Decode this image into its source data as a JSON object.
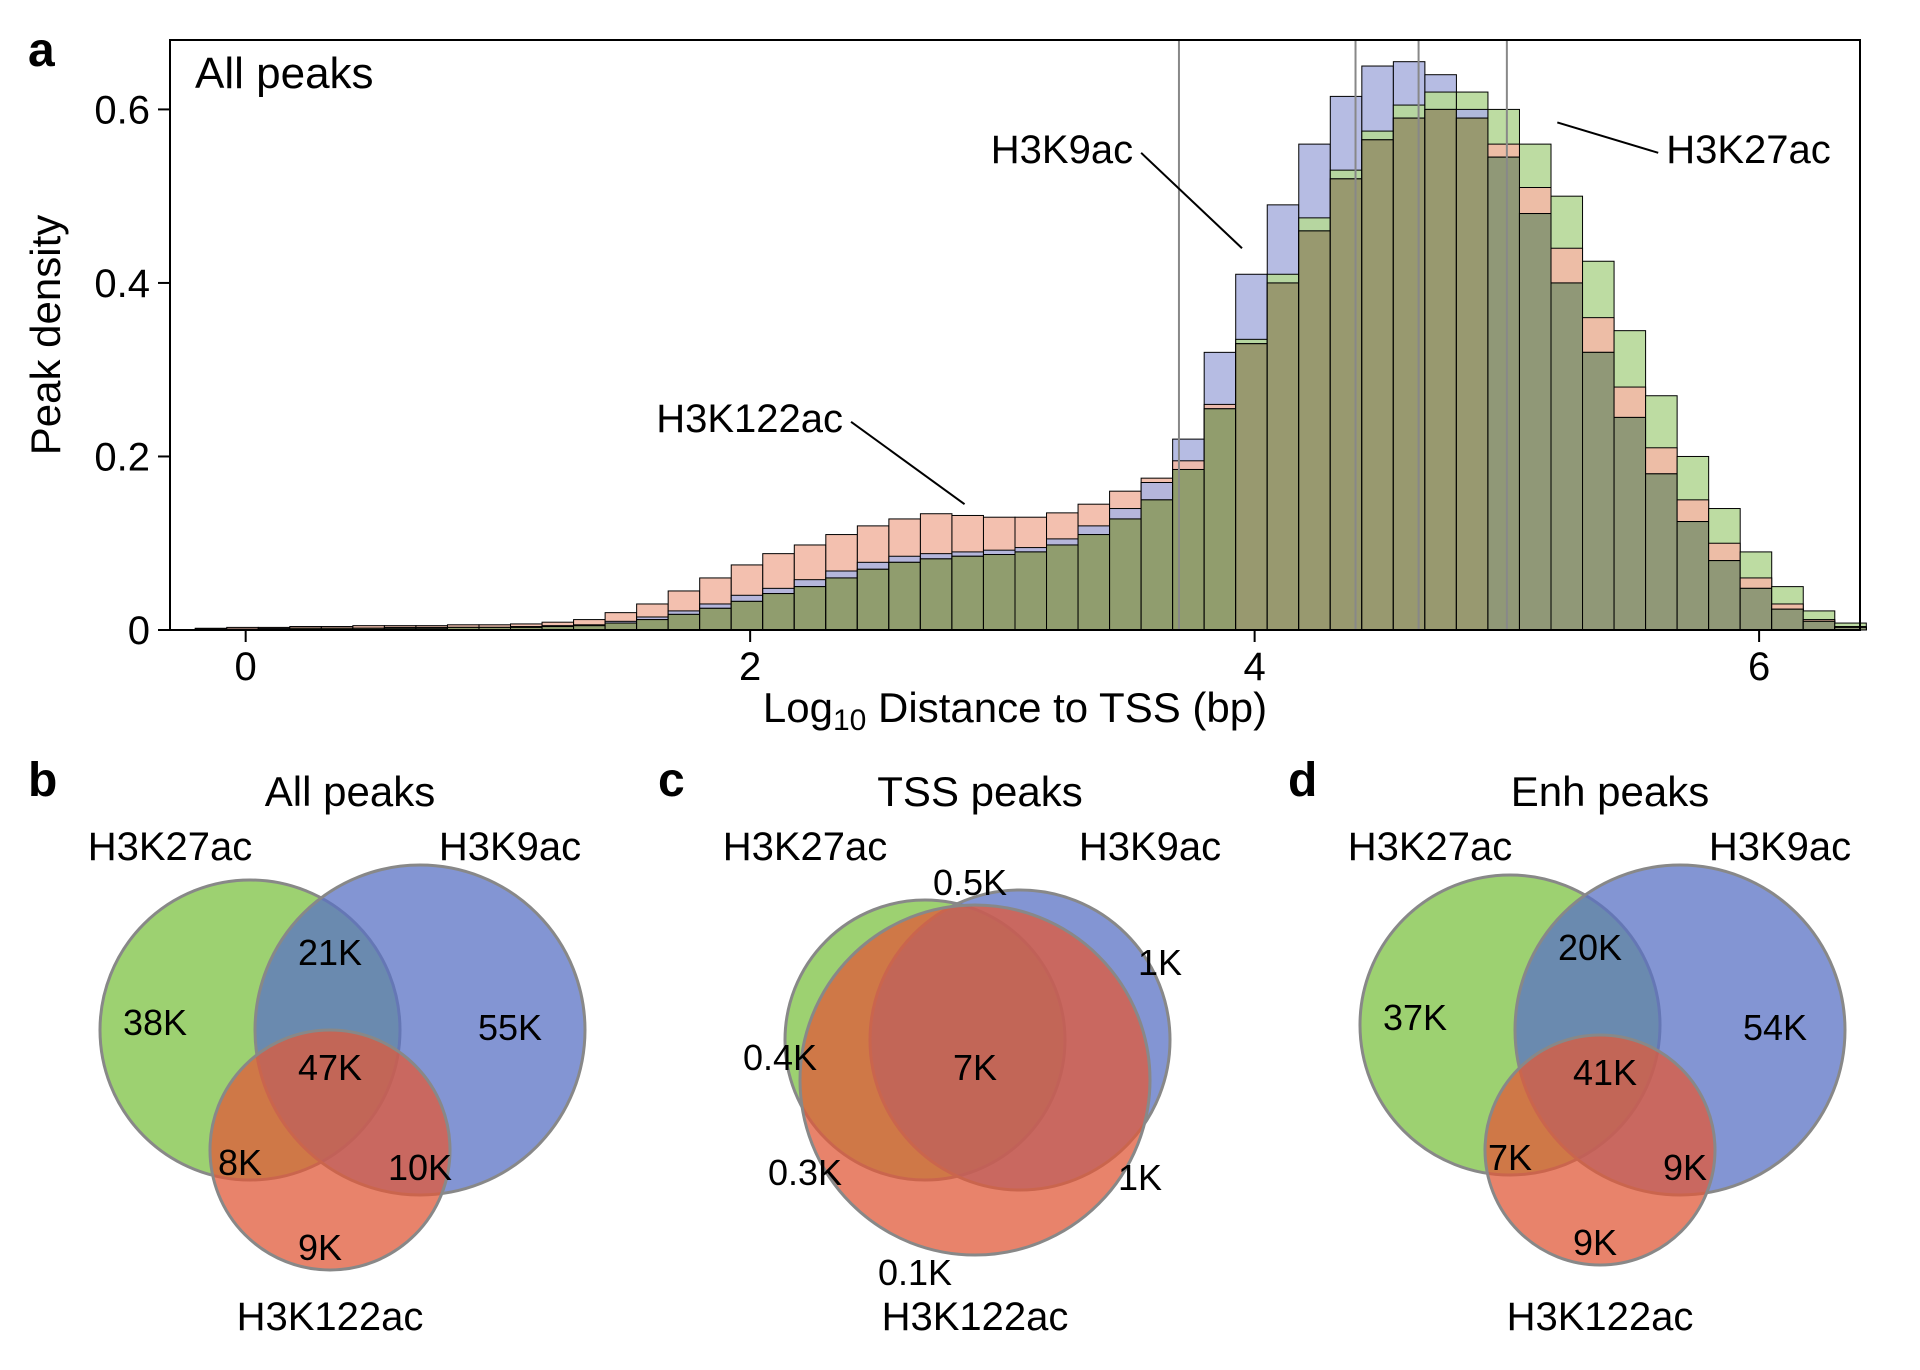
{
  "panelA": {
    "label": "a",
    "title_inset": "All peaks",
    "xlabel_prefix": "Log",
    "xlabel_sub": "10",
    "xlabel_suffix": " Distance to TSS (bp)",
    "ylabel": "Peak density",
    "xlim": [
      -0.3,
      6.4
    ],
    "ylim": [
      0,
      0.68
    ],
    "xticks": [
      0,
      2,
      4,
      6
    ],
    "yticks": [
      0,
      0.2,
      0.4,
      0.6
    ],
    "vertical_lines": [
      3.7,
      4.4,
      4.65,
      5.0
    ],
    "vertical_line_color": "#888888",
    "series_labels": {
      "H3K122ac": "H3K122ac",
      "H3K9ac": "H3K9ac",
      "H3K27ac": "H3K27ac"
    },
    "colors": {
      "H3K122ac": "#f2b9a6",
      "H3K9ac": "#aeb5e0",
      "H3K27ac": "#b6d898",
      "overlap_dark": "#8a9365",
      "bar_stroke": "#000000",
      "plot_border": "#000000",
      "background": "#ffffff",
      "tick_color": "#000000",
      "text_color": "#000000"
    },
    "bin_width": 0.125,
    "histograms": {
      "x": [
        -0.2,
        -0.075,
        0.05,
        0.175,
        0.3,
        0.425,
        0.55,
        0.675,
        0.8,
        0.925,
        1.05,
        1.175,
        1.3,
        1.425,
        1.55,
        1.675,
        1.8,
        1.925,
        2.05,
        2.175,
        2.3,
        2.425,
        2.55,
        2.675,
        2.8,
        2.925,
        3.05,
        3.175,
        3.3,
        3.425,
        3.55,
        3.675,
        3.8,
        3.925,
        4.05,
        4.175,
        4.3,
        4.425,
        4.55,
        4.675,
        4.8,
        4.925,
        5.05,
        5.175,
        5.3,
        5.425,
        5.55,
        5.675,
        5.8,
        5.925,
        6.05,
        6.175,
        6.3
      ],
      "H3K122ac": [
        0.002,
        0.003,
        0.003,
        0.004,
        0.004,
        0.005,
        0.005,
        0.005,
        0.006,
        0.006,
        0.007,
        0.009,
        0.012,
        0.02,
        0.03,
        0.045,
        0.06,
        0.075,
        0.088,
        0.098,
        0.11,
        0.12,
        0.128,
        0.134,
        0.132,
        0.13,
        0.13,
        0.135,
        0.145,
        0.16,
        0.175,
        0.195,
        0.26,
        0.33,
        0.4,
        0.46,
        0.52,
        0.565,
        0.59,
        0.6,
        0.59,
        0.56,
        0.51,
        0.44,
        0.36,
        0.28,
        0.21,
        0.15,
        0.1,
        0.06,
        0.03,
        0.012,
        0.004
      ],
      "H3K9ac": [
        0.001,
        0.001,
        0.002,
        0.002,
        0.002,
        0.002,
        0.003,
        0.003,
        0.003,
        0.003,
        0.004,
        0.005,
        0.006,
        0.01,
        0.015,
        0.022,
        0.03,
        0.04,
        0.048,
        0.058,
        0.068,
        0.078,
        0.085,
        0.088,
        0.09,
        0.092,
        0.095,
        0.105,
        0.12,
        0.14,
        0.17,
        0.22,
        0.32,
        0.41,
        0.49,
        0.56,
        0.615,
        0.65,
        0.655,
        0.64,
        0.6,
        0.545,
        0.48,
        0.4,
        0.32,
        0.245,
        0.18,
        0.125,
        0.08,
        0.048,
        0.024,
        0.01,
        0.003
      ],
      "H3K27ac": [
        0.001,
        0.001,
        0.001,
        0.002,
        0.002,
        0.002,
        0.002,
        0.002,
        0.003,
        0.003,
        0.003,
        0.004,
        0.005,
        0.008,
        0.012,
        0.018,
        0.025,
        0.033,
        0.042,
        0.05,
        0.06,
        0.07,
        0.078,
        0.082,
        0.085,
        0.087,
        0.09,
        0.098,
        0.11,
        0.128,
        0.15,
        0.185,
        0.255,
        0.335,
        0.41,
        0.475,
        0.53,
        0.575,
        0.605,
        0.62,
        0.62,
        0.6,
        0.56,
        0.5,
        0.425,
        0.345,
        0.27,
        0.2,
        0.14,
        0.09,
        0.05,
        0.022,
        0.008
      ]
    },
    "label_positions": {
      "H3K122ac": {
        "lx": 2.4,
        "ly": 0.24,
        "tx": 2.85,
        "ty": 0.145
      },
      "H3K9ac": {
        "lx": 3.55,
        "ly": 0.55,
        "tx": 3.95,
        "ty": 0.44
      },
      "H3K27ac": {
        "lx": 5.6,
        "ly": 0.55,
        "tx": 5.2,
        "ty": 0.585
      }
    }
  },
  "panelB": {
    "label": "b",
    "title": "All peaks",
    "labels": {
      "left": "H3K27ac",
      "right": "H3K9ac",
      "bottom": "H3K122ac"
    },
    "values": {
      "only_left": "38K",
      "only_right": "55K",
      "only_bottom": "9K",
      "left_right": "21K",
      "left_bottom": "8K",
      "right_bottom": "10K",
      "center": "47K"
    }
  },
  "panelC": {
    "label": "c",
    "title": "TSS peaks",
    "labels": {
      "left": "H3K27ac",
      "right": "H3K9ac",
      "bottom": "H3K122ac"
    },
    "values": {
      "only_left": "0.4K",
      "only_right": "1K",
      "only_bottom": "0.1K",
      "left_right": "0.5K",
      "left_bottom": "0.3K",
      "right_bottom": "1K",
      "center": "7K"
    }
  },
  "panelD": {
    "label": "d",
    "title": "Enh peaks",
    "labels": {
      "left": "H3K27ac",
      "right": "H3K9ac",
      "bottom": "H3K122ac"
    },
    "values": {
      "only_left": "37K",
      "only_right": "54K",
      "only_bottom": "9K",
      "left_right": "20K",
      "left_bottom": "7K",
      "right_bottom": "9K",
      "center": "41K"
    }
  },
  "venn_colors": {
    "left": "#7cc242",
    "right": "#5a72c4",
    "bottom": "#e05a3a",
    "stroke": "#888888",
    "opacity": 0.75,
    "text": "#000000"
  },
  "fonts": {
    "panel_label_size": 48,
    "axis_label_size": 42,
    "chart_text_size": 40,
    "venn_title_size": 42,
    "venn_label_size": 40,
    "venn_value_size": 36
  }
}
